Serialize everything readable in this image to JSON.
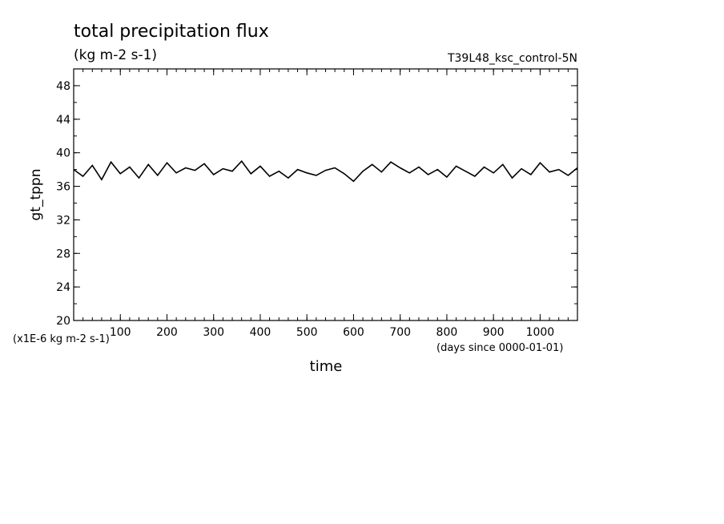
{
  "chart_data": {
    "type": "line",
    "title": "total precipitation flux",
    "subtitle": "(kg m-2 s-1)",
    "run_label": "T39L48_ksc_control-5N",
    "xlabel": "time",
    "x_units": "(days since 0000-01-01)",
    "ylabel": "gt_tppn",
    "y_units": "(x1E-6 kg m-2 s-1)",
    "xlim": [
      0,
      1080
    ],
    "ylim": [
      20,
      50
    ],
    "x_ticks": [
      100,
      200,
      300,
      400,
      500,
      600,
      700,
      800,
      900,
      1000
    ],
    "y_ticks": [
      20,
      24,
      28,
      32,
      36,
      40,
      44,
      48
    ],
    "grid": false,
    "line_color": "#000000",
    "series": [
      {
        "x": [
          0,
          20,
          40,
          60,
          80,
          100,
          120,
          140,
          160,
          180,
          200,
          220,
          240,
          260,
          280,
          300,
          320,
          340,
          360,
          380,
          400,
          420,
          440,
          460,
          480,
          500,
          520,
          540,
          560,
          580,
          600,
          620,
          640,
          660,
          680,
          700,
          720,
          740,
          760,
          780,
          800,
          820,
          840,
          860,
          880,
          900,
          920,
          940,
          960,
          980,
          1000,
          1020,
          1040,
          1060,
          1080
        ],
        "values": [
          38.0,
          37.2,
          38.5,
          36.8,
          38.9,
          37.5,
          38.3,
          37.0,
          38.6,
          37.3,
          38.8,
          37.6,
          38.2,
          37.9,
          38.7,
          37.4,
          38.1,
          37.8,
          39.0,
          37.5,
          38.4,
          37.2,
          37.8,
          37.0,
          38.0,
          37.6,
          37.3,
          37.9,
          38.2,
          37.5,
          36.6,
          37.8,
          38.6,
          37.7,
          38.9,
          38.2,
          37.6,
          38.3,
          37.4,
          38.0,
          37.1,
          38.4,
          37.8,
          37.2,
          38.3,
          37.6,
          38.6,
          37.0,
          38.1,
          37.4,
          38.8,
          37.7,
          38.0,
          37.3,
          38.2
        ]
      }
    ]
  }
}
